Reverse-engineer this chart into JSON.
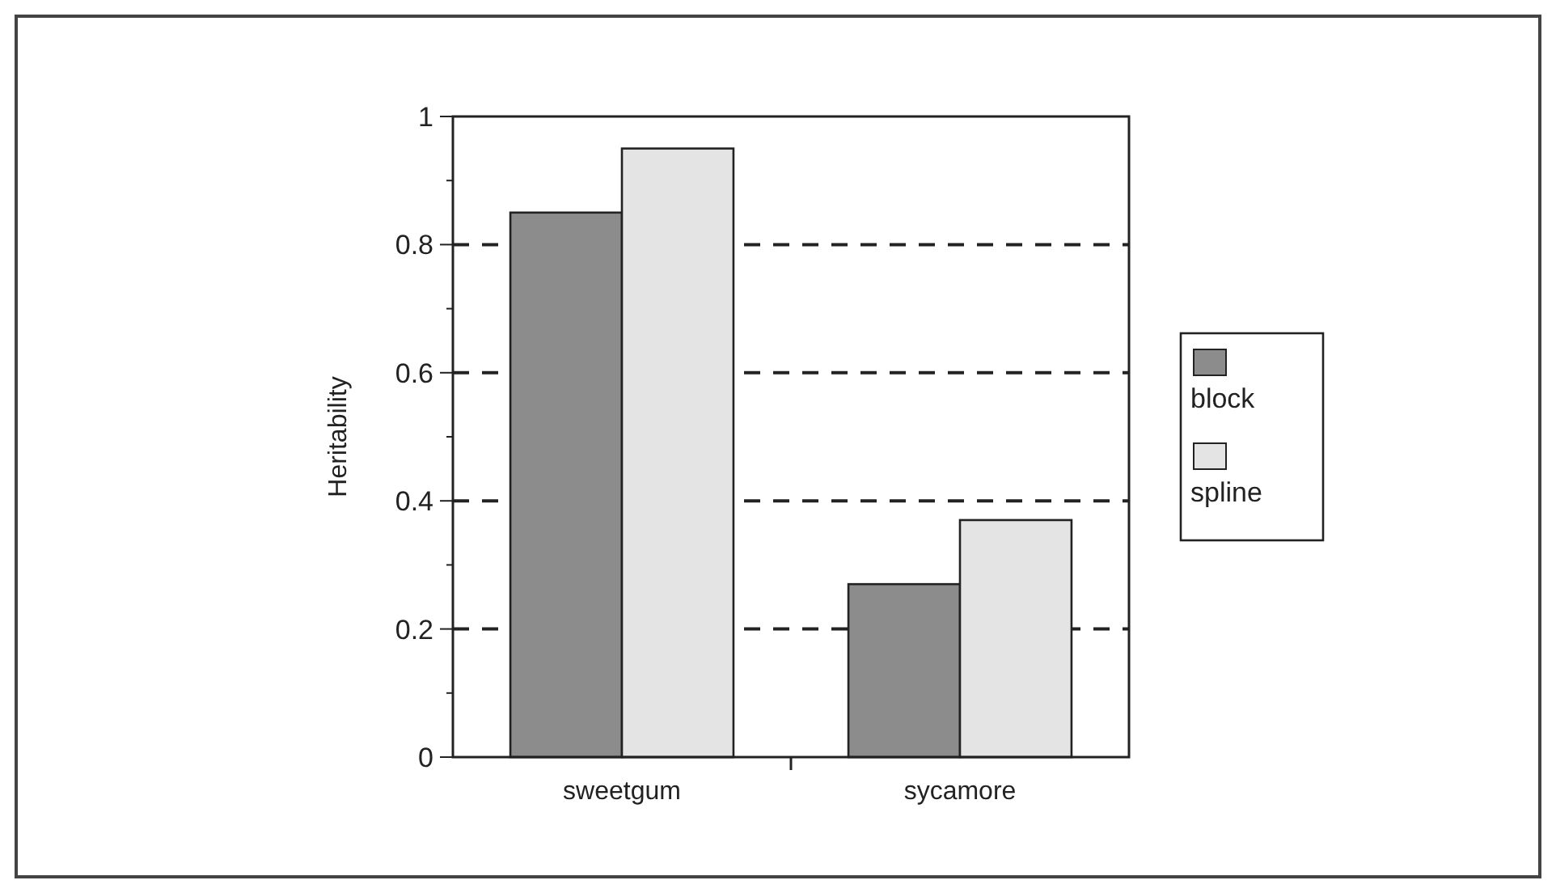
{
  "chart_data": {
    "type": "bar",
    "ylabel": "Heritability",
    "categories": [
      "sweetgum",
      "sycamore"
    ],
    "series": [
      {
        "name": "block",
        "color": "#8c8c8c",
        "values": [
          0.85,
          0.27
        ]
      },
      {
        "name": "spline",
        "color": "#e4e4e4",
        "values": [
          0.95,
          0.37
        ]
      }
    ],
    "ylim": [
      0,
      1
    ],
    "yticks": [
      0,
      {
        "value": 0.1,
        "label": null
      },
      0.2,
      {
        "value": 0.3,
        "label": null
      },
      0.4,
      {
        "value": 0.5,
        "label": null
      },
      0.6,
      {
        "value": 0.7,
        "label": null
      },
      0.8,
      {
        "value": 0.9,
        "label": null
      },
      1
    ],
    "grid": "y",
    "legend": "right"
  }
}
